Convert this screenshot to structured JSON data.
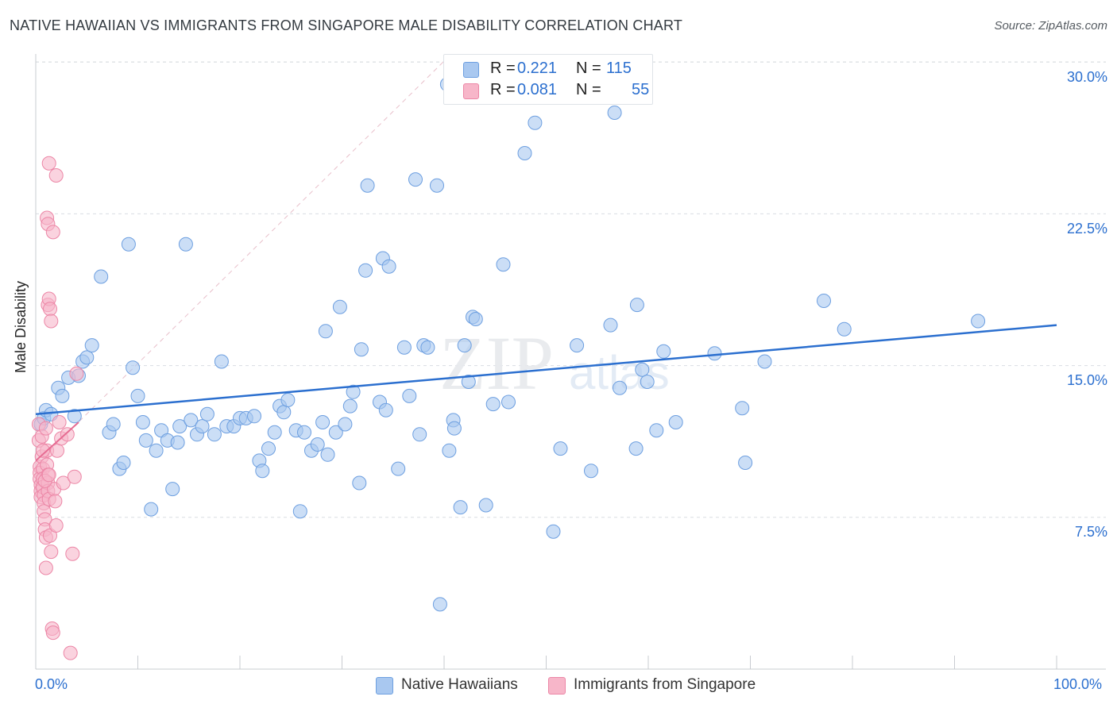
{
  "header": {
    "title": "NATIVE HAWAIIAN VS IMMIGRANTS FROM SINGAPORE MALE DISABILITY CORRELATION CHART",
    "source": "Source: ZipAtlas.com"
  },
  "legend_top": {
    "r_label": "R =",
    "n_label": "N =",
    "series1": {
      "r": "0.221",
      "n": "115"
    },
    "series2": {
      "r": "0.081",
      "n": "55"
    }
  },
  "watermark": {
    "zip": "ZIP",
    "atlas": "atlas"
  },
  "colors": {
    "blue_fill": "#a9c8f0",
    "blue_stroke": "#6d9fe0",
    "blue_line": "#2b6fcf",
    "pink_fill": "#f7b6c9",
    "pink_stroke": "#ec86a6",
    "pink_line": "#e66b92",
    "grid": "#dadde2"
  },
  "chart_data": {
    "type": "scatter",
    "title": "NATIVE HAWAIIAN VS IMMIGRANTS FROM SINGAPORE MALE DISABILITY CORRELATION CHART",
    "xlabel": "",
    "ylabel": "Male Disability",
    "xlim": [
      0,
      100
    ],
    "ylim": [
      0,
      31.5
    ],
    "x_tick_labels": [
      "0.0%",
      "100.0%"
    ],
    "y_ticks": [
      7.5,
      15.0,
      22.5,
      30.0
    ],
    "y_tick_labels": [
      "7.5%",
      "15.0%",
      "22.5%",
      "30.0%"
    ],
    "grid": true,
    "series": [
      {
        "name": "Native Hawaiians",
        "r": 0.221,
        "n": 115,
        "trend": {
          "x": [
            0,
            100
          ],
          "y": [
            12.6,
            17.0
          ]
        },
        "points": [
          [
            0.5,
            12.1
          ],
          [
            0.8,
            12.4
          ],
          [
            1.0,
            12.8
          ],
          [
            1.5,
            12.6
          ],
          [
            2.2,
            13.9
          ],
          [
            2.6,
            13.5
          ],
          [
            3.2,
            14.4
          ],
          [
            3.8,
            12.5
          ],
          [
            4.2,
            14.5
          ],
          [
            4.6,
            15.2
          ],
          [
            5.0,
            15.4
          ],
          [
            5.5,
            16.0
          ],
          [
            6.4,
            19.4
          ],
          [
            7.2,
            11.7
          ],
          [
            7.6,
            12.1
          ],
          [
            8.2,
            9.9
          ],
          [
            8.6,
            10.2
          ],
          [
            9.1,
            21.0
          ],
          [
            9.5,
            14.9
          ],
          [
            10.0,
            13.5
          ],
          [
            10.5,
            12.2
          ],
          [
            10.8,
            11.3
          ],
          [
            11.3,
            7.9
          ],
          [
            11.8,
            10.8
          ],
          [
            12.3,
            11.8
          ],
          [
            12.9,
            11.3
          ],
          [
            13.4,
            8.9
          ],
          [
            13.9,
            11.2
          ],
          [
            14.1,
            12.0
          ],
          [
            14.7,
            21.0
          ],
          [
            15.2,
            12.3
          ],
          [
            15.8,
            11.6
          ],
          [
            16.3,
            12.0
          ],
          [
            16.8,
            12.6
          ],
          [
            17.5,
            11.6
          ],
          [
            18.2,
            15.2
          ],
          [
            18.7,
            12.0
          ],
          [
            19.4,
            12.0
          ],
          [
            20.0,
            12.4
          ],
          [
            20.6,
            12.4
          ],
          [
            21.4,
            12.5
          ],
          [
            21.9,
            10.3
          ],
          [
            22.2,
            9.8
          ],
          [
            22.8,
            10.9
          ],
          [
            23.4,
            11.7
          ],
          [
            23.9,
            13.0
          ],
          [
            24.3,
            12.7
          ],
          [
            24.7,
            13.3
          ],
          [
            25.5,
            11.8
          ],
          [
            25.9,
            7.8
          ],
          [
            26.3,
            11.7
          ],
          [
            27.0,
            10.8
          ],
          [
            27.6,
            11.1
          ],
          [
            28.1,
            12.2
          ],
          [
            28.4,
            16.7
          ],
          [
            28.6,
            10.6
          ],
          [
            29.4,
            11.7
          ],
          [
            29.8,
            17.9
          ],
          [
            30.3,
            12.1
          ],
          [
            30.8,
            13.0
          ],
          [
            31.1,
            13.7
          ],
          [
            31.7,
            9.2
          ],
          [
            31.9,
            15.8
          ],
          [
            32.3,
            19.7
          ],
          [
            32.5,
            23.9
          ],
          [
            33.7,
            13.2
          ],
          [
            34.0,
            20.3
          ],
          [
            34.3,
            12.8
          ],
          [
            34.6,
            19.9
          ],
          [
            35.5,
            9.9
          ],
          [
            36.1,
            15.9
          ],
          [
            36.6,
            13.5
          ],
          [
            37.2,
            24.2
          ],
          [
            37.6,
            11.6
          ],
          [
            38.0,
            16.0
          ],
          [
            38.4,
            15.9
          ],
          [
            39.3,
            23.9
          ],
          [
            39.6,
            3.2
          ],
          [
            40.3,
            28.9
          ],
          [
            40.5,
            10.8
          ],
          [
            40.9,
            12.3
          ],
          [
            41.0,
            11.9
          ],
          [
            41.6,
            8.0
          ],
          [
            42.0,
            16.0
          ],
          [
            42.4,
            14.2
          ],
          [
            42.8,
            17.4
          ],
          [
            43.1,
            17.3
          ],
          [
            44.1,
            8.1
          ],
          [
            44.8,
            13.1
          ],
          [
            45.8,
            20.0
          ],
          [
            46.3,
            13.2
          ],
          [
            47.9,
            25.5
          ],
          [
            48.9,
            27.0
          ],
          [
            50.7,
            6.8
          ],
          [
            51.4,
            10.9
          ],
          [
            53.0,
            16.0
          ],
          [
            54.4,
            9.8
          ],
          [
            56.3,
            17.0
          ],
          [
            56.7,
            27.5
          ],
          [
            57.2,
            13.9
          ],
          [
            58.8,
            10.9
          ],
          [
            58.9,
            18.0
          ],
          [
            59.4,
            14.8
          ],
          [
            59.9,
            14.2
          ],
          [
            60.8,
            11.8
          ],
          [
            61.5,
            15.7
          ],
          [
            62.7,
            12.2
          ],
          [
            66.5,
            15.6
          ],
          [
            69.2,
            12.9
          ],
          [
            69.5,
            10.2
          ],
          [
            71.4,
            15.2
          ],
          [
            77.2,
            18.2
          ],
          [
            79.2,
            16.8
          ],
          [
            92.3,
            17.2
          ]
        ]
      },
      {
        "name": "Immigrants from Singapore",
        "r": 0.081,
        "n": 55,
        "trend": {
          "x": [
            0,
            4.2
          ],
          "y": [
            10.3,
            12.2
          ]
        },
        "points": [
          [
            0.3,
            12.1
          ],
          [
            0.3,
            11.3
          ],
          [
            0.4,
            10.0
          ],
          [
            0.4,
            9.7
          ],
          [
            0.4,
            9.4
          ],
          [
            0.5,
            9.1
          ],
          [
            0.5,
            8.8
          ],
          [
            0.5,
            8.5
          ],
          [
            0.6,
            11.5
          ],
          [
            0.6,
            10.5
          ],
          [
            0.7,
            9.9
          ],
          [
            0.7,
            9.4
          ],
          [
            0.7,
            9.0
          ],
          [
            0.8,
            8.6
          ],
          [
            0.8,
            8.2
          ],
          [
            0.8,
            7.8
          ],
          [
            0.9,
            7.4
          ],
          [
            0.9,
            6.9
          ],
          [
            1.0,
            6.5
          ],
          [
            1.0,
            5.0
          ],
          [
            1.0,
            11.9
          ],
          [
            1.1,
            10.8
          ],
          [
            1.1,
            10.1
          ],
          [
            1.2,
            9.6
          ],
          [
            1.2,
            9.2
          ],
          [
            1.2,
            8.8
          ],
          [
            1.3,
            8.4
          ],
          [
            1.4,
            6.6
          ],
          [
            1.5,
            5.8
          ],
          [
            1.6,
            2.0
          ],
          [
            1.7,
            1.8
          ],
          [
            1.8,
            8.9
          ],
          [
            1.9,
            8.3
          ],
          [
            2.0,
            7.1
          ],
          [
            2.1,
            10.8
          ],
          [
            2.3,
            12.2
          ],
          [
            2.5,
            11.4
          ],
          [
            2.7,
            9.2
          ],
          [
            3.1,
            11.6
          ],
          [
            3.4,
            0.8
          ],
          [
            3.6,
            5.7
          ],
          [
            3.8,
            9.5
          ],
          [
            4.0,
            14.6
          ],
          [
            1.2,
            18.0
          ],
          [
            1.3,
            18.3
          ],
          [
            1.4,
            17.8
          ],
          [
            1.5,
            17.2
          ],
          [
            1.1,
            22.3
          ],
          [
            1.2,
            22.0
          ],
          [
            1.7,
            21.6
          ],
          [
            1.3,
            25.0
          ],
          [
            2.0,
            24.4
          ],
          [
            0.9,
            9.3
          ],
          [
            1.3,
            9.6
          ],
          [
            0.7,
            10.8
          ]
        ]
      }
    ]
  },
  "legend_bottom": {
    "item1": "Native Hawaiians",
    "item2": "Immigrants from Singapore"
  }
}
